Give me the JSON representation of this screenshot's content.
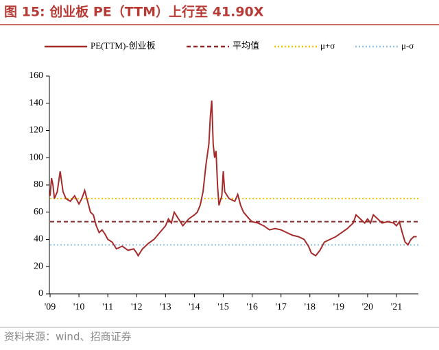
{
  "chart_data": {
    "type": "line",
    "title": "图 15:  创业板 PE（TTM）上行至 41.90X",
    "source": "资料来源：wind、招商证券",
    "xlim": [
      2009,
      2021.76
    ],
    "xticks": [
      {
        "value": 2009,
        "label": "'09"
      },
      {
        "value": 2010,
        "label": "'10"
      },
      {
        "value": 2011,
        "label": "'11"
      },
      {
        "value": 2012,
        "label": "'12"
      },
      {
        "value": 2013,
        "label": "'13"
      },
      {
        "value": 2014,
        "label": "'14"
      },
      {
        "value": 2015,
        "label": "'15"
      },
      {
        "value": 2016,
        "label": "'16"
      },
      {
        "value": 2017,
        "label": "'17"
      },
      {
        "value": 2018,
        "label": "'18"
      },
      {
        "value": 2019,
        "label": "'19"
      },
      {
        "value": 2020,
        "label": "'20"
      },
      {
        "value": 2021,
        "label": "'21"
      }
    ],
    "ylim": [
      0,
      160
    ],
    "yticks": [
      0,
      20,
      40,
      60,
      80,
      100,
      120,
      140,
      160
    ],
    "series": [
      {
        "name": "PE(TTM)-创业板",
        "color": "#a52a2a",
        "x": [
          2009.0,
          2009.05,
          2009.1,
          2009.15,
          2009.25,
          2009.35,
          2009.45,
          2009.55,
          2009.7,
          2009.85,
          2010.0,
          2010.1,
          2010.2,
          2010.3,
          2010.4,
          2010.5,
          2010.6,
          2010.7,
          2010.8,
          2010.9,
          2011.0,
          2011.15,
          2011.3,
          2011.5,
          2011.7,
          2011.9,
          2012.0,
          2012.05,
          2012.2,
          2012.4,
          2012.6,
          2012.8,
          2013.0,
          2013.1,
          2013.2,
          2013.3,
          2013.45,
          2013.6,
          2013.8,
          2014.0,
          2014.1,
          2014.2,
          2014.3,
          2014.4,
          2014.5,
          2014.55,
          2014.6,
          2014.65,
          2014.7,
          2014.75,
          2014.8,
          2014.85,
          2014.95,
          2015.0,
          2015.05,
          2015.2,
          2015.4,
          2015.5,
          2015.6,
          2015.7,
          2015.9,
          2016.0,
          2016.2,
          2016.4,
          2016.6,
          2016.8,
          2017.0,
          2017.2,
          2017.4,
          2017.6,
          2017.8,
          2017.95,
          2018.05,
          2018.2,
          2018.35,
          2018.5,
          2018.7,
          2018.9,
          2019.1,
          2019.3,
          2019.5,
          2019.6,
          2019.75,
          2019.9,
          2020.0,
          2020.1,
          2020.2,
          2020.35,
          2020.5,
          2020.7,
          2020.9,
          2021.0,
          2021.1,
          2021.2,
          2021.3,
          2021.4,
          2021.5,
          2021.6,
          2021.7
        ],
        "values": [
          72,
          85,
          80,
          70,
          75,
          90,
          75,
          70,
          68,
          72,
          66,
          70,
          76,
          68,
          60,
          58,
          50,
          45,
          47,
          44,
          40,
          38,
          33,
          35,
          32,
          33,
          30,
          28,
          33,
          37,
          40,
          45,
          50,
          55,
          52,
          60,
          55,
          50,
          55,
          58,
          60,
          65,
          75,
          95,
          110,
          130,
          142,
          110,
          100,
          105,
          80,
          65,
          72,
          90,
          75,
          70,
          68,
          73,
          65,
          60,
          55,
          53,
          52,
          50,
          47,
          48,
          47,
          45,
          43,
          42,
          40,
          35,
          30,
          28,
          32,
          38,
          40,
          42,
          45,
          48,
          52,
          58,
          55,
          52,
          55,
          52,
          58,
          55,
          52,
          53,
          52,
          50,
          53,
          45,
          38,
          36,
          40,
          42,
          42
        ]
      }
    ],
    "hlines": [
      {
        "name": "平均值",
        "value": 53,
        "color": "#8b2a2a",
        "style": "dashed"
      },
      {
        "name": "μ+σ",
        "value": 70,
        "color": "#f5c400",
        "style": "dotted"
      },
      {
        "name": "μ-σ",
        "value": 36,
        "color": "#8fc3ea",
        "style": "dotted"
      }
    ]
  }
}
